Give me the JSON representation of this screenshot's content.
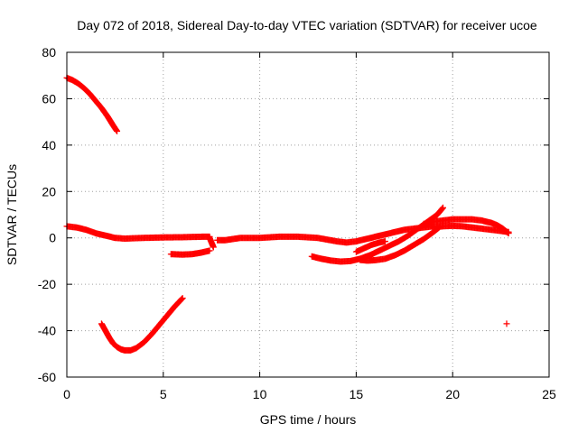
{
  "chart_data": {
    "type": "scatter",
    "title": "Day 072 of 2018, Sidereal Day-to-day VTEC variation (SDTVAR) for receiver ucoe",
    "xlabel": "GPS time / hours",
    "ylabel": "SDTVAR / TECUs",
    "xlim": [
      0,
      25
    ],
    "ylim": [
      -60,
      80
    ],
    "xticks": [
      0,
      5,
      10,
      15,
      20,
      25
    ],
    "yticks": [
      -60,
      -40,
      -20,
      0,
      20,
      40,
      60,
      80
    ],
    "grid": true,
    "marker": "+",
    "series_color": "#ff0000",
    "series": [
      {
        "name": "arc-1",
        "x": [
          0.0,
          0.3,
          0.6,
          0.9,
          1.2,
          1.5,
          1.8,
          2.1,
          2.4,
          2.6
        ],
        "y": [
          69,
          68,
          66.5,
          64.5,
          62,
          59,
          56,
          52.5,
          48.5,
          46
        ]
      },
      {
        "name": "arc-2",
        "x": [
          1.8,
          2.0,
          2.2,
          2.4,
          2.6,
          2.8,
          3.0,
          3.3,
          3.6,
          4.0,
          4.4,
          4.8,
          5.2,
          5.6,
          6.0
        ],
        "y": [
          -37,
          -40,
          -43,
          -45.5,
          -47,
          -48,
          -48.5,
          -48.5,
          -47.5,
          -45,
          -41.5,
          -37.5,
          -33.5,
          -29.5,
          -26
        ]
      },
      {
        "name": "arc-3",
        "x": [
          0.0,
          0.5,
          1.0,
          1.5,
          2.0,
          2.5,
          3.0,
          4.0,
          5.0,
          6.0,
          7.0,
          7.4
        ],
        "y": [
          5,
          4.5,
          3.5,
          2,
          1,
          0,
          -0.3,
          0,
          0.2,
          0.3,
          0.5,
          0.5
        ]
      },
      {
        "name": "arc-4",
        "x": [
          5.4,
          6.0,
          6.5,
          7.0,
          7.4
        ],
        "y": [
          -7,
          -7.2,
          -7,
          -6.3,
          -5.5
        ]
      },
      {
        "name": "arc-5",
        "x": [
          7.4,
          7.5,
          7.6
        ],
        "y": [
          0,
          -2,
          -4
        ]
      },
      {
        "name": "arc-6",
        "x": [
          7.8,
          8.2,
          8.6,
          9.0,
          10.0,
          11.0,
          12.0,
          13.0,
          14.0,
          14.5,
          15.0,
          15.5,
          16.0,
          16.5,
          17.0,
          17.5,
          18.0,
          18.5,
          19.0
        ],
        "y": [
          -1,
          -1,
          -0.5,
          0,
          0,
          0.5,
          0.5,
          0,
          -1.5,
          -2,
          -1.5,
          -0.5,
          0.5,
          1.5,
          2.5,
          3.5,
          4,
          4.5,
          5
        ]
      },
      {
        "name": "arc-7",
        "x": [
          12.7,
          13.2,
          13.7,
          14.2,
          14.7,
          15.2,
          15.7,
          16.2,
          16.7,
          17.2,
          17.7,
          18.2,
          18.7,
          19.2,
          19.5
        ],
        "y": [
          -8,
          -9,
          -9.8,
          -10.2,
          -10,
          -9,
          -7.5,
          -5.5,
          -3.5,
          -1.5,
          1,
          4,
          7,
          10,
          13
        ]
      },
      {
        "name": "arc-8",
        "x": [
          15.2,
          15.6,
          16.0,
          16.5,
          17.0,
          17.5,
          18.0,
          18.5,
          19.0,
          19.3
        ],
        "y": [
          -9.5,
          -9.8,
          -9.6,
          -9,
          -7.5,
          -5.5,
          -3,
          -0.5,
          2.5,
          4.5
        ]
      },
      {
        "name": "arc-9",
        "x": [
          15.0,
          15.4,
          15.8,
          16.2,
          16.5
        ],
        "y": [
          -6,
          -4.5,
          -3,
          -2,
          -1.5
        ]
      },
      {
        "name": "arc-10",
        "x": [
          18.5,
          19.0,
          19.5,
          20.0,
          20.5,
          21.0,
          21.5,
          22.0,
          22.3,
          22.6,
          22.9
        ],
        "y": [
          6,
          7,
          7.5,
          8,
          8,
          8,
          7.5,
          6.5,
          5.5,
          4,
          2
        ]
      },
      {
        "name": "arc-11",
        "x": [
          19.0,
          19.5,
          20.0,
          20.5,
          21.0,
          21.5,
          22.0,
          22.5,
          22.9
        ],
        "y": [
          4.5,
          5,
          5.2,
          5,
          4.5,
          4,
          3.5,
          3,
          2.5
        ]
      },
      {
        "name": "point-1",
        "x": [
          22.8
        ],
        "y": [
          -37
        ]
      }
    ]
  }
}
